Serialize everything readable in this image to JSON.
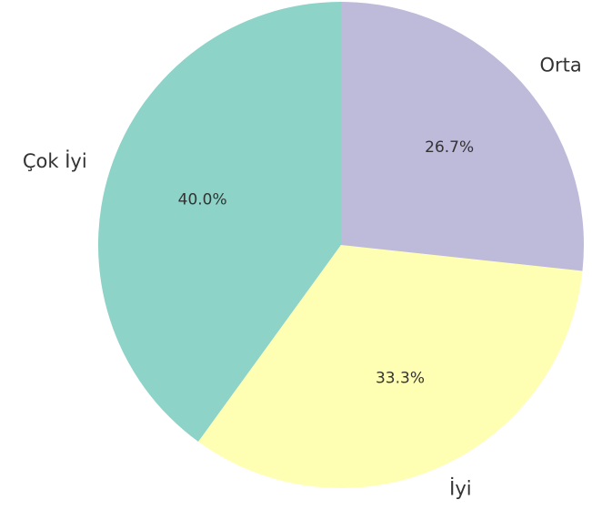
{
  "chart_data": {
    "type": "pie",
    "categories": [
      "Çok İyi",
      "İyi",
      "Orta"
    ],
    "values": [
      40.0,
      33.3,
      26.7
    ],
    "value_labels": [
      "40.0%",
      "33.3%",
      "26.7%"
    ],
    "colors": [
      "#8dd3c7",
      "#ffffb3",
      "#bebada"
    ],
    "start_angle": 90,
    "direction": "counterclockwise"
  }
}
